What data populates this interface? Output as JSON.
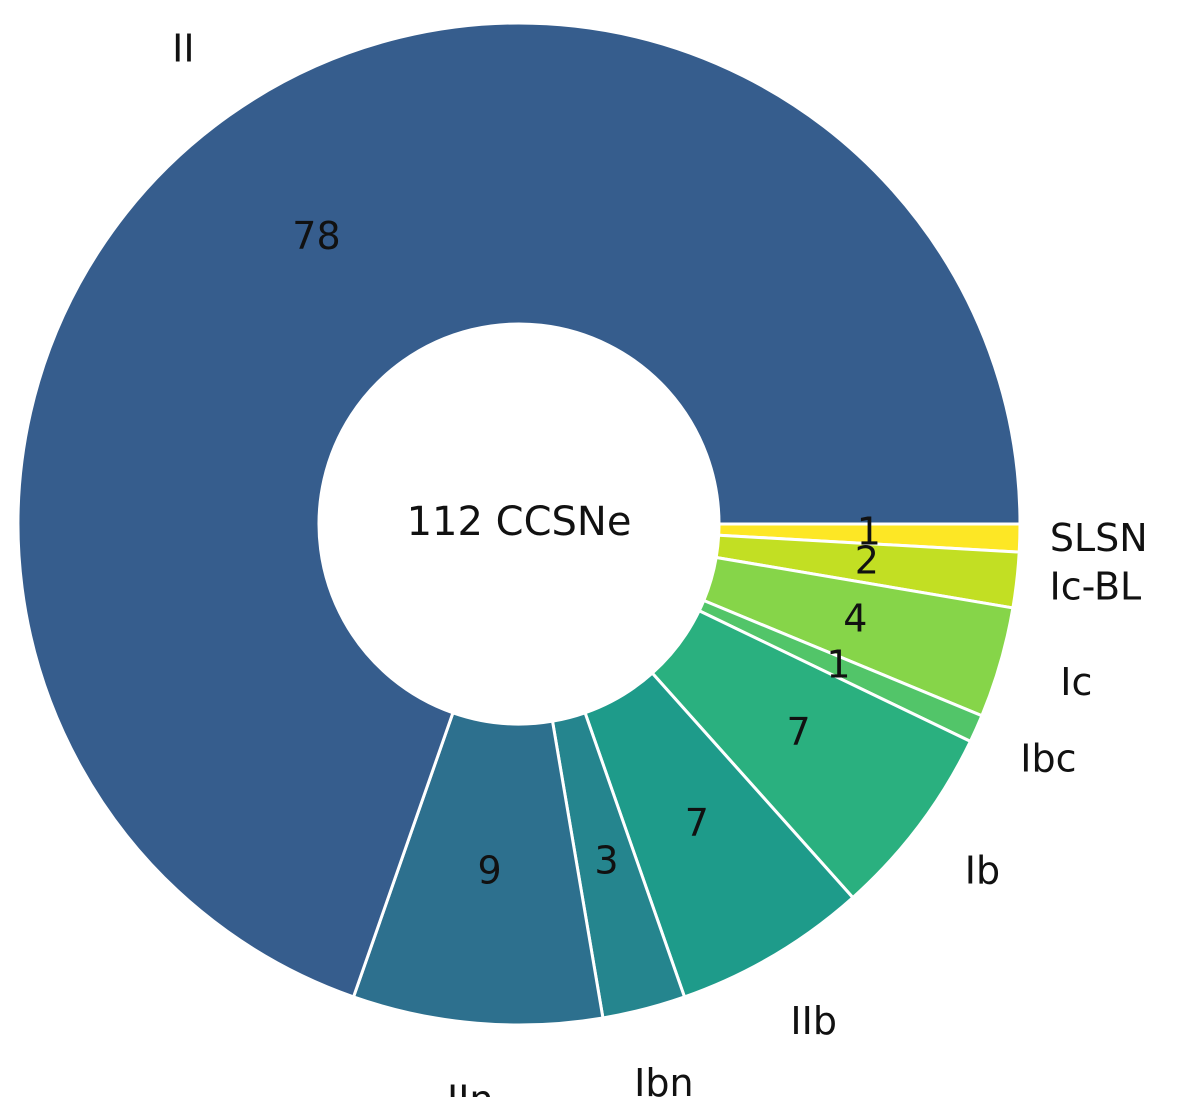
{
  "chart_data": {
    "type": "pie",
    "donut": true,
    "center_text": "112 CCSNe",
    "categories": [
      "SLSN",
      "Ic-BL",
      "Ic",
      "Ibc",
      "Ib",
      "IIb",
      "Ibn",
      "IIn",
      "II"
    ],
    "values": [
      1,
      2,
      4,
      1,
      7,
      7,
      3,
      9,
      78
    ],
    "colors": [
      "#fde725",
      "#c2df23",
      "#86d549",
      "#52c569",
      "#2ab07f",
      "#1e9b8a",
      "#25858e",
      "#2d708e",
      "#365d8d"
    ],
    "wedge_edge_color": "#ffffff"
  }
}
